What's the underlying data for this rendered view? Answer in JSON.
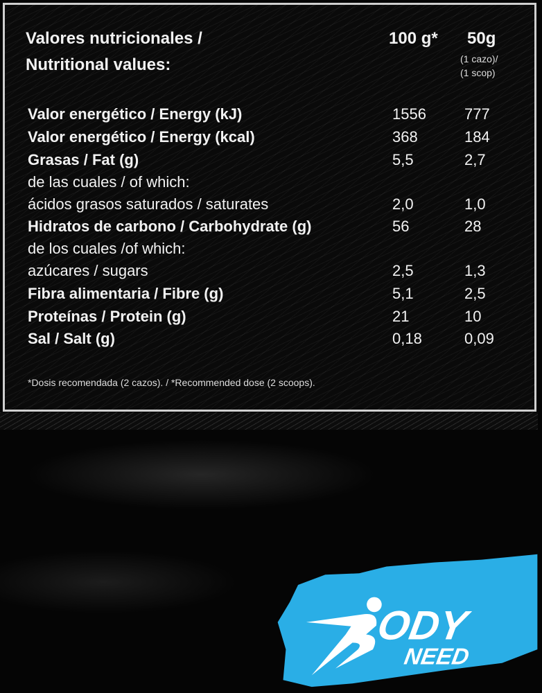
{
  "header": {
    "title_es": "Valores nutricionales /",
    "title_en": "Nutritional values:",
    "col1": "100 g*",
    "col2": "50g",
    "col2_sub1": "(1 cazo)/",
    "col2_sub2": "(1 scop)"
  },
  "rows": [
    {
      "label": "Valor energético / Energy (kJ)",
      "v100": "1556",
      "v50": "777",
      "bold": true
    },
    {
      "label": "Valor energético / Energy (kcal)",
      "v100": "368",
      "v50": "184",
      "bold": true
    },
    {
      "label": "Grasas / Fat (g)",
      "v100": "5,5",
      "v50": "2,7",
      "bold": true
    },
    {
      "label": "de las cuales / of which:",
      "v100": "",
      "v50": "",
      "bold": false
    },
    {
      "label": "ácidos grasos saturados / saturates",
      "v100": "2,0",
      "v50": "1,0",
      "bold": false
    },
    {
      "label": "Hidratos de carbono / Carbohydrate (g)",
      "v100": "56",
      "v50": "28",
      "bold": true
    },
    {
      "label": "de los cuales /of which:",
      "v100": "",
      "v50": "",
      "bold": false
    },
    {
      "label": "azúcares /  sugars",
      "v100": "2,5",
      "v50": "1,3",
      "bold": false
    },
    {
      "label": "Fibra alimentaria / Fibre (g)",
      "v100": "5,1",
      "v50": "2,5",
      "bold": true
    },
    {
      "label": "Proteínas / Protein (g)",
      "v100": "21",
      "v50": "10",
      "bold": true
    },
    {
      "label": "Sal / Salt  (g)",
      "v100": "0,18",
      "v50": "0,09",
      "bold": true
    }
  ],
  "footnote": "*Dosis recomendada (2 cazos). / *Recommended dose (2 scoops).",
  "logo": {
    "text": "BODY NEED",
    "line1": "ODY",
    "line2": "NEED",
    "color": "#2aaee6"
  }
}
